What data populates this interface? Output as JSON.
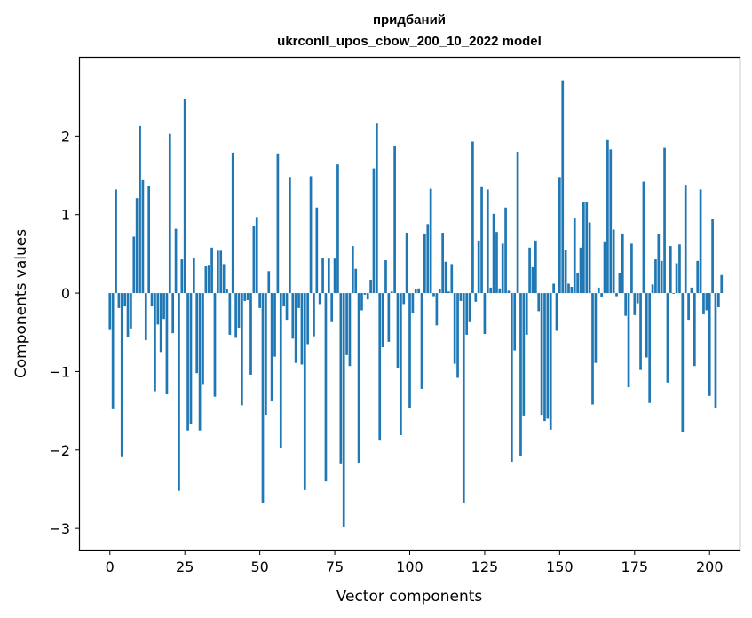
{
  "chart_data": {
    "type": "bar",
    "title_line1": "придбаний",
    "title_line2": "ukrconll_upos_cbow_200_10_2022 model",
    "xlabel": "Vector components",
    "ylabel": "Components values",
    "xlim": [
      -10,
      210
    ],
    "ylim": [
      -3.27,
      3.0
    ],
    "xticks": [
      0,
      25,
      50,
      75,
      100,
      125,
      150,
      175,
      200
    ],
    "xtick_labels": [
      "0",
      "25",
      "50",
      "75",
      "100",
      "125",
      "150",
      "175",
      "200"
    ],
    "yticks": [
      -3,
      -2,
      -1,
      0,
      1,
      2
    ],
    "ytick_labels": [
      "−3",
      "−2",
      "−1",
      "0",
      "1",
      "2"
    ],
    "bar_color": "#1f77b4",
    "values": [
      -0.47,
      -1.48,
      1.32,
      -0.19,
      -2.09,
      -0.17,
      -0.56,
      -0.45,
      0.72,
      1.21,
      2.13,
      1.44,
      -0.6,
      1.36,
      -0.17,
      -1.25,
      -0.4,
      -0.75,
      -0.33,
      -1.29,
      2.03,
      -0.51,
      0.82,
      -2.52,
      0.43,
      2.47,
      -1.75,
      -1.67,
      0.45,
      -1.02,
      -1.75,
      -1.17,
      0.34,
      0.35,
      0.58,
      -1.32,
      0.54,
      0.54,
      0.37,
      0.05,
      -0.53,
      1.79,
      -0.57,
      -0.44,
      -1.43,
      -0.1,
      -0.09,
      -1.04,
      0.86,
      0.97,
      -0.19,
      -2.67,
      -1.55,
      0.28,
      -1.38,
      -0.81,
      1.78,
      -1.97,
      -0.17,
      -0.34,
      1.48,
      -0.58,
      -0.89,
      -0.19,
      -0.91,
      -2.51,
      -0.65,
      1.49,
      -0.55,
      1.09,
      -0.14,
      0.45,
      -2.4,
      0.44,
      -0.37,
      0.44,
      1.64,
      -2.17,
      -2.98,
      -0.79,
      -0.93,
      0.6,
      0.31,
      -2.16,
      -0.22,
      -0.02,
      -0.08,
      0.17,
      1.59,
      2.16,
      -1.88,
      -0.69,
      0.42,
      -0.62,
      0.02,
      1.88,
      -0.95,
      -1.81,
      -0.14,
      0.77,
      -1.47,
      -0.26,
      0.05,
      0.06,
      -1.22,
      0.76,
      0.88,
      1.33,
      -0.04,
      -0.41,
      0.05,
      0.77,
      0.4,
      0.02,
      0.37,
      -0.9,
      -1.08,
      -0.1,
      -2.68,
      -0.53,
      -0.37,
      1.93,
      -0.11,
      0.67,
      1.35,
      -0.52,
      1.32,
      0.07,
      1.01,
      0.78,
      0.06,
      0.63,
      1.09,
      0.03,
      -2.15,
      -0.73,
      1.8,
      -2.08,
      -1.56,
      -0.53,
      0.58,
      0.33,
      0.67,
      -0.23,
      -1.55,
      -1.63,
      -1.6,
      -1.74,
      0.12,
      -0.48,
      1.48,
      2.71,
      0.55,
      0.12,
      0.08,
      0.95,
      0.25,
      0.58,
      1.16,
      1.16,
      0.9,
      -1.42,
      -0.89,
      0.07,
      -0.05,
      0.66,
      1.95,
      1.83,
      0.81,
      -0.04,
      0.26,
      0.76,
      -0.29,
      -1.2,
      0.63,
      -0.28,
      -0.13,
      -0.98,
      1.42,
      -0.82,
      -1.4,
      0.11,
      0.43,
      0.76,
      0.41,
      1.85,
      -1.14,
      0.6,
      -0.01,
      0.38,
      0.62,
      -1.77,
      1.38,
      -0.34,
      0.07,
      -0.93,
      0.41,
      1.32,
      -0.27,
      -0.22,
      -1.31,
      0.94,
      -1.47,
      -0.18,
      0.23
    ]
  }
}
